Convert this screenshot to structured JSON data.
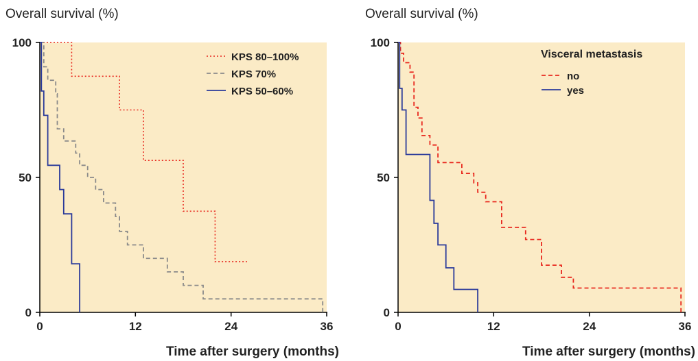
{
  "colors": {
    "plot_bg": "#FBEBC6",
    "red": "#E8281E",
    "gray": "#8A8A8A",
    "blue": "#2A3A9A"
  },
  "chart_data": [
    {
      "type": "line",
      "step": true,
      "ylabel": "Overall survival (%)",
      "xlabel": "Time after surgery (months)",
      "xlim": [
        0,
        36
      ],
      "ylim": [
        0,
        100
      ],
      "xticks": [
        "0",
        "12",
        "24",
        "36"
      ],
      "yticks": [
        "0",
        "50",
        "100"
      ],
      "grid": false,
      "legend_title": "",
      "legend_position": "top-right",
      "series": [
        {
          "name": "KPS 80–100%",
          "color": "#E8281E",
          "dash": "dotted",
          "points": [
            [
              0,
              100
            ],
            [
              4,
              100
            ],
            [
              4,
              87.5
            ],
            [
              10,
              87.5
            ],
            [
              10,
              75
            ],
            [
              13,
              75
            ],
            [
              13,
              56.3
            ],
            [
              18,
              56.3
            ],
            [
              18,
              37.5
            ],
            [
              22,
              37.5
            ],
            [
              22,
              18.8
            ],
            [
              26,
              18.8
            ]
          ]
        },
        {
          "name": "KPS 70%",
          "color": "#8A8A8A",
          "dash": "dashed",
          "points": [
            [
              0,
              100
            ],
            [
              0.5,
              100
            ],
            [
              0.5,
              91
            ],
            [
              1,
              91
            ],
            [
              1,
              86
            ],
            [
              2,
              86
            ],
            [
              2,
              81
            ],
            [
              2.2,
              81
            ],
            [
              2.2,
              68
            ],
            [
              3,
              68
            ],
            [
              3,
              63.5
            ],
            [
              4.5,
              63.5
            ],
            [
              4.5,
              59
            ],
            [
              5,
              59
            ],
            [
              5,
              54.5
            ],
            [
              6,
              54.5
            ],
            [
              6,
              50
            ],
            [
              7,
              50
            ],
            [
              7,
              45.5
            ],
            [
              8,
              45.5
            ],
            [
              8,
              40.5
            ],
            [
              9.5,
              40.5
            ],
            [
              9.5,
              35.5
            ],
            [
              10,
              35.5
            ],
            [
              10,
              30
            ],
            [
              11,
              30
            ],
            [
              11,
              25
            ],
            [
              13,
              25
            ],
            [
              13,
              20
            ],
            [
              16,
              20
            ],
            [
              16,
              15
            ],
            [
              18,
              15
            ],
            [
              18,
              10
            ],
            [
              20.5,
              10
            ],
            [
              20.5,
              5
            ],
            [
              35.5,
              5
            ],
            [
              35.5,
              0
            ]
          ]
        },
        {
          "name": "KPS 50–60%",
          "color": "#2A3A9A",
          "dash": "solid",
          "points": [
            [
              0,
              100
            ],
            [
              0.2,
              100
            ],
            [
              0.2,
              82
            ],
            [
              0.5,
              82
            ],
            [
              0.5,
              73
            ],
            [
              1,
              73
            ],
            [
              1,
              54.5
            ],
            [
              2.5,
              54.5
            ],
            [
              2.5,
              45.5
            ],
            [
              3,
              45.5
            ],
            [
              3,
              36.5
            ],
            [
              4,
              36.5
            ],
            [
              4,
              18
            ],
            [
              5,
              18
            ],
            [
              5,
              0
            ]
          ]
        }
      ]
    },
    {
      "type": "line",
      "step": true,
      "ylabel": "Overall survival (%)",
      "xlabel": "Time after surgery (months)",
      "xlim": [
        0,
        36
      ],
      "ylim": [
        0,
        100
      ],
      "xticks": [
        "0",
        "12",
        "24",
        "36"
      ],
      "yticks": [
        "0",
        "50",
        "100"
      ],
      "grid": false,
      "legend_title": "Visceral metastasis",
      "legend_position": "top-right",
      "series": [
        {
          "name": "no",
          "color": "#E8281E",
          "dash": "dashed",
          "points": [
            [
              0,
              100
            ],
            [
              0.3,
              100
            ],
            [
              0.3,
              96
            ],
            [
              0.7,
              96
            ],
            [
              0.7,
              92.5
            ],
            [
              1.5,
              92.5
            ],
            [
              1.5,
              89
            ],
            [
              2,
              89
            ],
            [
              2,
              76
            ],
            [
              2.5,
              76
            ],
            [
              2.5,
              72
            ],
            [
              3,
              72
            ],
            [
              3,
              65.5
            ],
            [
              4,
              65.5
            ],
            [
              4,
              62
            ],
            [
              5,
              62
            ],
            [
              5,
              55.5
            ],
            [
              8,
              55.5
            ],
            [
              8,
              51.5
            ],
            [
              9.5,
              51.5
            ],
            [
              9.5,
              48
            ],
            [
              10,
              48
            ],
            [
              10,
              44.5
            ],
            [
              11,
              44.5
            ],
            [
              11,
              41
            ],
            [
              13,
              41
            ],
            [
              13,
              31.5
            ],
            [
              16,
              31.5
            ],
            [
              16,
              27
            ],
            [
              18,
              27
            ],
            [
              18,
              17.5
            ],
            [
              20.5,
              17.5
            ],
            [
              20.5,
              13
            ],
            [
              22,
              13
            ],
            [
              22,
              9
            ],
            [
              35.5,
              9
            ],
            [
              35.5,
              0
            ]
          ]
        },
        {
          "name": "yes",
          "color": "#2A3A9A",
          "dash": "solid",
          "points": [
            [
              0,
              100
            ],
            [
              0.2,
              100
            ],
            [
              0.2,
              83
            ],
            [
              0.5,
              83
            ],
            [
              0.5,
              75
            ],
            [
              1,
              75
            ],
            [
              1,
              58.5
            ],
            [
              4,
              58.5
            ],
            [
              4,
              41.5
            ],
            [
              4.5,
              41.5
            ],
            [
              4.5,
              33
            ],
            [
              5,
              33
            ],
            [
              5,
              25
            ],
            [
              6,
              25
            ],
            [
              6,
              16.5
            ],
            [
              7,
              16.5
            ],
            [
              7,
              8.5
            ],
            [
              10,
              8.5
            ],
            [
              10,
              0
            ]
          ]
        }
      ]
    }
  ]
}
